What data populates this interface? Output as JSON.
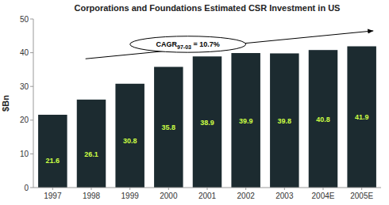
{
  "chart_data": {
    "type": "bar",
    "title": "Corporations and Foundations Estimated CSR Investment in US",
    "ylabel": "$Bn",
    "categories": [
      "1997",
      "1998",
      "1999",
      "2000",
      "2001",
      "2002",
      "2003",
      "2004E",
      "2005E"
    ],
    "values": [
      21.6,
      26.1,
      30.8,
      35.8,
      38.9,
      39.9,
      39.8,
      40.8,
      41.9
    ],
    "color": "#1c2b30",
    "ylim": [
      0,
      50
    ],
    "yticks": [
      0,
      10,
      20,
      30,
      40,
      50
    ],
    "grid": false,
    "data_labels": true,
    "annotations": [
      {
        "text": "CAGR",
        "subscript": "97-03",
        "text_after": " = 10.7%"
      }
    ]
  }
}
